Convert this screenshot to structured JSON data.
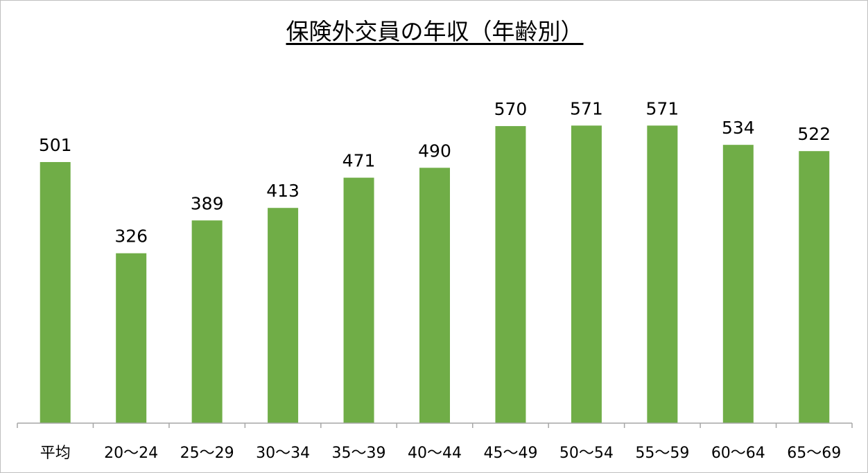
{
  "chart_data": {
    "type": "bar",
    "title": "保険外交員の年収（年齢別）",
    "categories": [
      "平均",
      "20〜24",
      "25〜29",
      "30〜34",
      "35〜39",
      "40〜44",
      "45〜49",
      "50〜54",
      "55〜59",
      "60〜64",
      "65〜69"
    ],
    "values": [
      501,
      326,
      389,
      413,
      471,
      490,
      570,
      571,
      571,
      534,
      522
    ],
    "xlabel": "",
    "ylabel": "",
    "ylim": [
      0,
      620
    ],
    "grid": false,
    "legend": "none",
    "bar_color": "#70ad47",
    "axis_color": "#a6a6a6"
  }
}
